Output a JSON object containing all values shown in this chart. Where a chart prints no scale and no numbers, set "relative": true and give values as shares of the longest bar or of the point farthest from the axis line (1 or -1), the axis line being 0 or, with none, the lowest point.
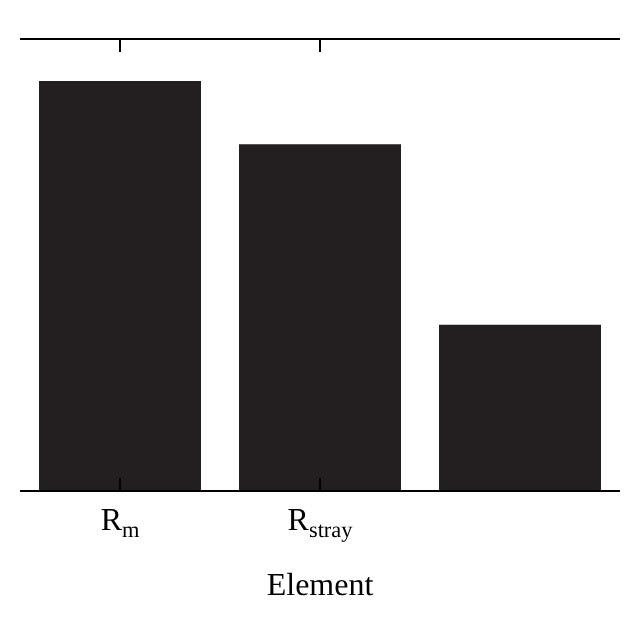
{
  "chart_data": {
    "type": "bar",
    "relative": true,
    "xlabel": "Element",
    "categories": [
      "R$_{m}$",
      "R$_{stray}$",
      null
    ],
    "values": [
      1,
      0.845,
      0.404
    ],
    "color": "#231f20"
  }
}
